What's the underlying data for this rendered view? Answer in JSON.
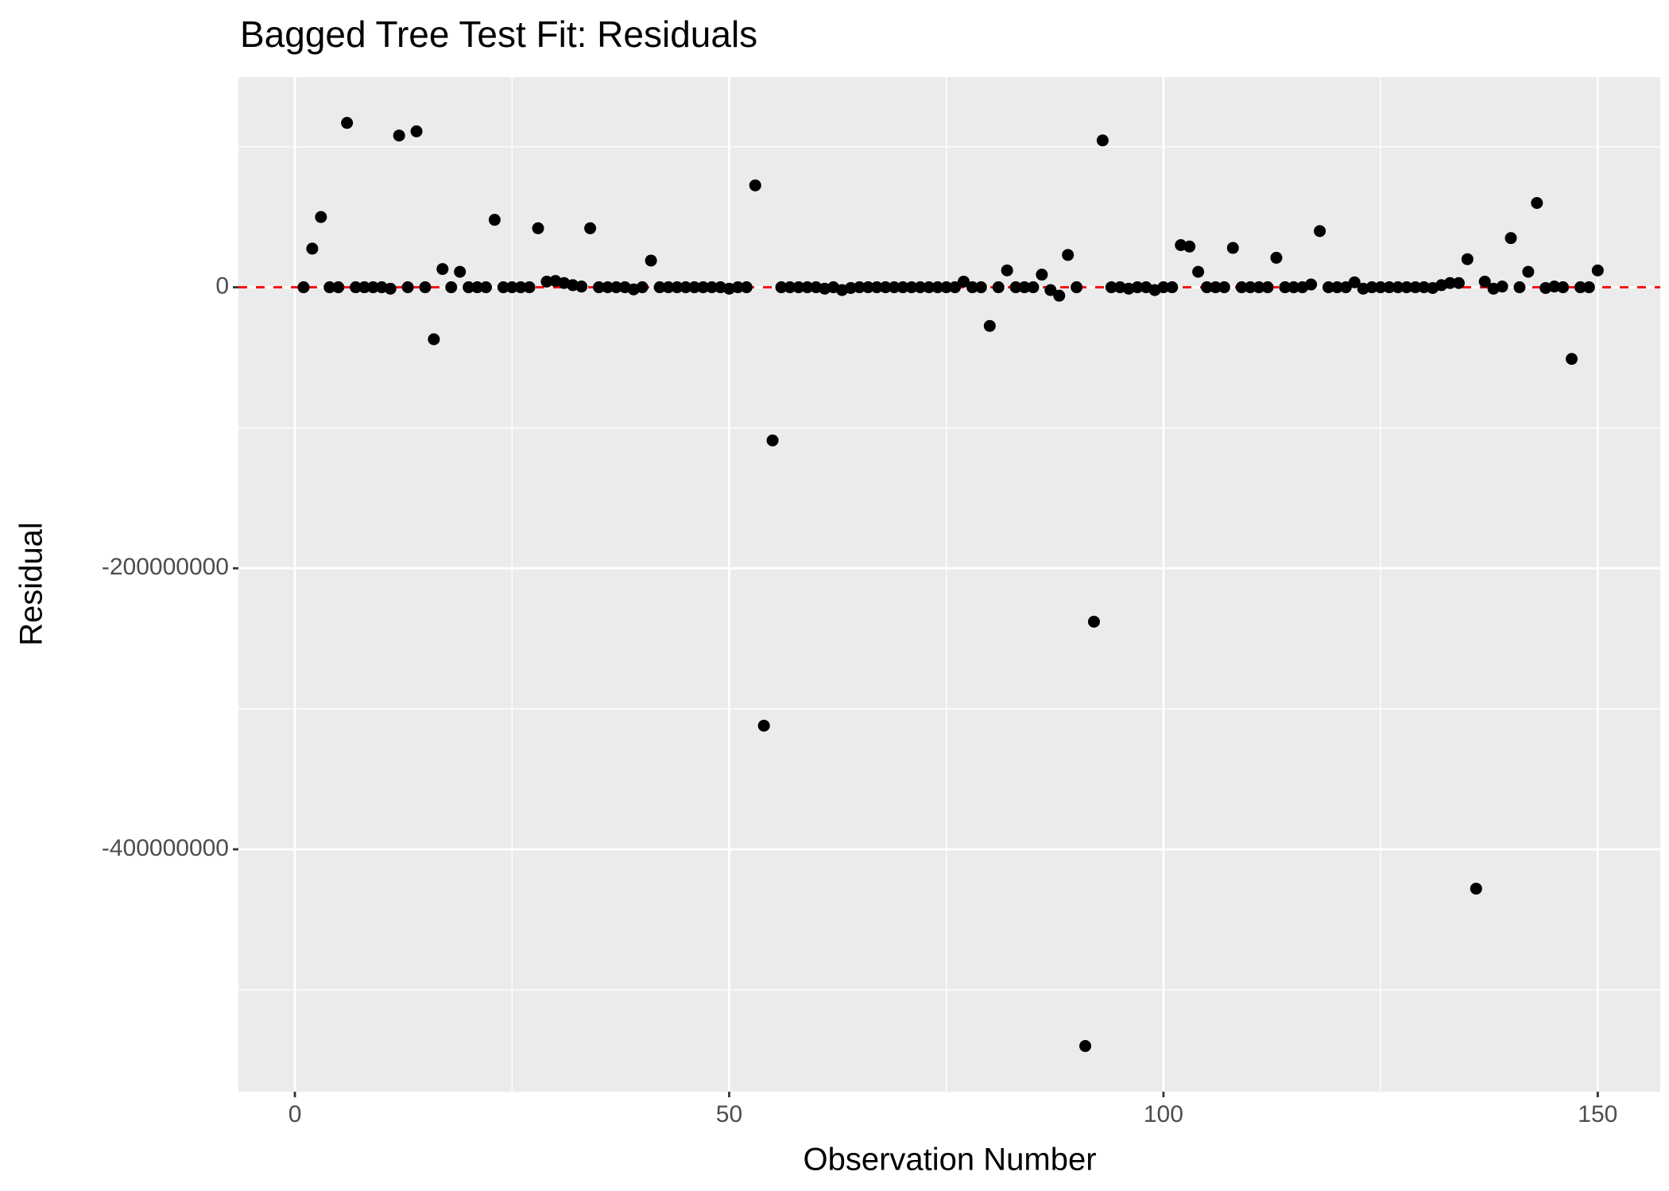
{
  "chart_data": {
    "type": "scatter",
    "title": "Bagged Tree Test Fit: Residuals",
    "x_label": "Observation Number",
    "y_label": "Residual",
    "x": [
      1,
      2,
      3,
      4,
      5,
      6,
      7,
      8,
      9,
      10,
      11,
      12,
      13,
      14,
      15,
      16,
      17,
      18,
      19,
      20,
      21,
      22,
      23,
      24,
      25,
      26,
      27,
      28,
      29,
      30,
      31,
      32,
      33,
      34,
      35,
      36,
      37,
      38,
      39,
      40,
      41,
      42,
      43,
      44,
      45,
      46,
      47,
      48,
      49,
      50,
      51,
      52,
      53,
      54,
      55,
      56,
      57,
      58,
      59,
      60,
      61,
      62,
      63,
      64,
      65,
      66,
      67,
      68,
      69,
      70,
      71,
      72,
      73,
      74,
      75,
      76,
      77,
      78,
      79,
      80,
      81,
      82,
      83,
      84,
      85,
      86,
      87,
      88,
      89,
      90,
      91,
      92,
      93,
      94,
      95,
      96,
      97,
      98,
      99,
      100,
      101,
      102,
      103,
      104,
      105,
      106,
      107,
      108,
      109,
      110,
      111,
      112,
      113,
      114,
      115,
      116,
      117,
      118,
      119,
      120,
      121,
      122,
      123,
      124,
      125,
      126,
      127,
      128,
      129,
      130,
      131,
      132,
      133,
      134,
      135,
      136,
      137,
      138,
      139,
      140,
      141,
      142,
      143,
      144,
      145,
      146,
      147,
      148,
      149,
      150
    ],
    "values": [
      0,
      27500000,
      50000000,
      0,
      0,
      117000000,
      0,
      0,
      0,
      0,
      -1000000,
      108000000,
      0,
      111000000,
      0,
      -37000000,
      13000000,
      0,
      11000000,
      0,
      0,
      0,
      48000000,
      0,
      0,
      0,
      0,
      42000000,
      4000000,
      4500000,
      3000000,
      1500000,
      500000,
      42000000,
      0,
      0,
      0,
      0,
      -1500000,
      0,
      19000000,
      0,
      0,
      0,
      0,
      0,
      0,
      0,
      0,
      -1000000,
      0,
      0,
      72500000,
      -312000000,
      -109000000,
      0,
      0,
      0,
      0,
      0,
      -1000000,
      0,
      -2000000,
      -500000,
      0,
      0,
      0,
      0,
      0,
      0,
      0,
      0,
      0,
      0,
      0,
      0,
      4000000,
      0,
      0,
      -27500000,
      0,
      12000000,
      0,
      0,
      0,
      9000000,
      -2000000,
      -6000000,
      23000000,
      0,
      -540000000,
      -238000000,
      104500000,
      0,
      0,
      -1000000,
      0,
      0,
      -2000000,
      0,
      0,
      30000000,
      29000000,
      11000000,
      0,
      0,
      0,
      28000000,
      0,
      0,
      0,
      0,
      21000000,
      0,
      0,
      0,
      2000000,
      40000000,
      0,
      0,
      0,
      3500000,
      -1000000,
      0,
      0,
      0,
      0,
      0,
      0,
      0,
      -500000,
      1500000,
      3000000,
      3000000,
      20000000,
      -428000000,
      4000000,
      -1000000,
      500000,
      35000000,
      0,
      11000000,
      60000000,
      -500000,
      500000,
      0,
      -51000000,
      0,
      0,
      12000000
    ],
    "color": "#000000",
    "xlim": [
      -6.5,
      157.2
    ],
    "ylim": [
      -572500000,
      149600000
    ],
    "xticks": [
      0,
      50,
      100,
      150
    ],
    "yticks": [
      -400000000,
      -200000000,
      0
    ],
    "x_minor_grid": [
      25,
      75,
      125
    ],
    "y_minor_grid": [
      -500000000,
      -300000000,
      -100000000,
      100000000
    ],
    "hline": 0,
    "hline_color": "#ff0000",
    "grid": true
  }
}
